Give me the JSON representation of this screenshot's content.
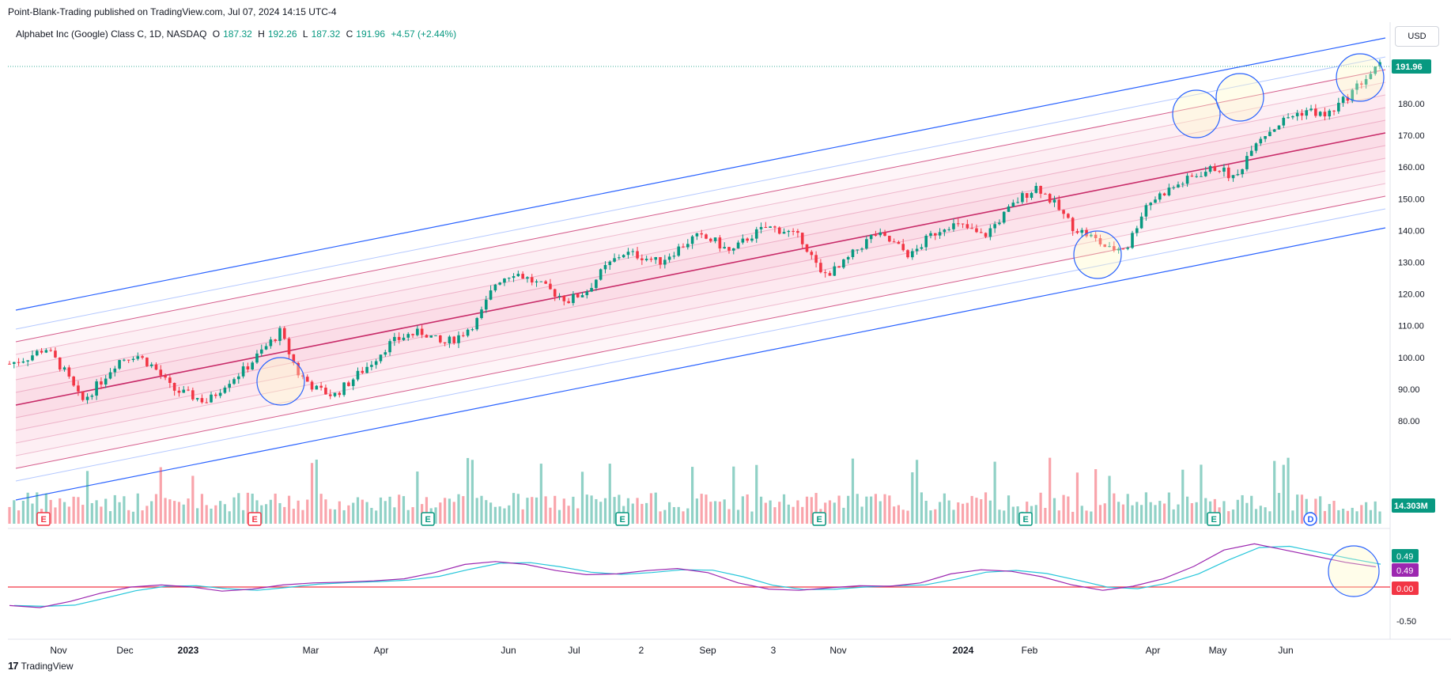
{
  "header": {
    "publisher_line": "Point-Blank-Trading published on TradingView.com, Jul 07, 2024 14:15 UTC-4",
    "symbol": "Alphabet Inc (Google) Class C, 1D, NASDAQ",
    "ohlc": {
      "open_label": "O",
      "open": "187.32",
      "high_label": "H",
      "high": "192.26",
      "low_label": "L",
      "low": "187.32",
      "close_label": "C",
      "close": "191.96",
      "change": "+4.57 (+2.44%)"
    },
    "currency": "USD"
  },
  "footer": {
    "brand": "TradingView"
  },
  "colors": {
    "up": "#089981",
    "down": "#f23645",
    "channel_outer": "#2962ff",
    "channel_mid": "#c2185b",
    "band_fill": "#f8bbd0",
    "macd": "#9c27b0",
    "signal": "#26c6da",
    "zero": "#f23645"
  },
  "chart_data": {
    "type": "candlestick",
    "price_axis": {
      "ticks": [
        80,
        90,
        100,
        110,
        120,
        130,
        140,
        150,
        160,
        170,
        180
      ],
      "last_price": "191.96"
    },
    "volume": {
      "last_label": "14.303M"
    },
    "x_ticks": [
      "Nov",
      "Dec",
      "2023",
      "Mar",
      "Apr",
      "Jun",
      "Jul",
      "2",
      "Sep",
      "3",
      "Nov",
      "2024",
      "Feb",
      "Apr",
      "May",
      "Jun"
    ],
    "close_series": [
      98,
      100,
      103,
      96,
      86,
      92,
      99,
      101,
      97,
      90,
      88,
      86,
      92,
      96,
      102,
      108,
      95,
      90,
      88,
      93,
      98,
      104,
      107,
      108,
      104,
      107,
      112,
      124,
      127,
      124,
      121,
      118,
      121,
      128,
      133,
      132,
      130,
      134,
      138,
      137,
      133,
      138,
      141,
      140,
      137,
      126,
      128,
      134,
      139,
      136,
      132,
      138,
      142,
      141,
      138,
      144,
      150,
      154,
      148,
      141,
      138,
      134,
      135,
      148,
      152,
      155,
      158,
      160,
      156,
      168,
      172,
      176,
      178,
      176,
      181,
      187,
      191.96
    ],
    "macd": {
      "macd_label": "0.49",
      "signal_label": "0.49",
      "zero_label": "0.00",
      "axis_tick": "-0.50"
    },
    "events": [
      {
        "label": "E",
        "type": "earnings"
      },
      {
        "label": "E",
        "type": "earnings"
      },
      {
        "label": "E",
        "type": "earnings"
      },
      {
        "label": "E",
        "type": "earnings"
      },
      {
        "label": "E",
        "type": "earnings"
      },
      {
        "label": "E",
        "type": "earnings"
      },
      {
        "label": "E",
        "type": "earnings"
      },
      {
        "label": "D",
        "type": "dividend"
      }
    ]
  }
}
